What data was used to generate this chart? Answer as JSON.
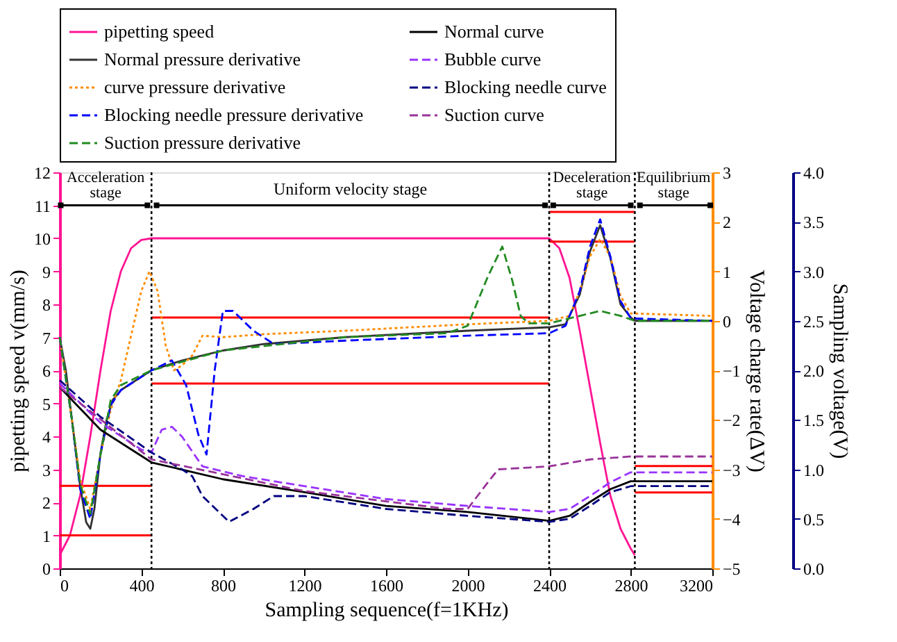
{
  "chart_data": {
    "type": "line",
    "xlabel": "Sampling sequence(f=1KHz)",
    "ylabel": "pipetting speed v(mm/s)",
    "y2label": "Voltage charge rate(ΔV)",
    "y3label": "Sampling voltage(V)",
    "xlim": [
      0,
      3200
    ],
    "xticks": [
      0,
      400,
      800,
      1200,
      1600,
      2000,
      2400,
      2800,
      3200
    ],
    "ylim": [
      0,
      12
    ],
    "yticks": [
      0,
      1,
      2,
      3,
      4,
      5,
      6,
      7,
      8,
      9,
      10,
      11,
      12
    ],
    "y2lim": [
      -5,
      3
    ],
    "y2ticks": [
      -5,
      -4,
      -3,
      -2,
      -1,
      0,
      1,
      2,
      3
    ],
    "y3lim": [
      0,
      4
    ],
    "y3ticks": [
      {
        "value": 0,
        "label": "0.0"
      },
      {
        "value": 0.5,
        "label": "0.5"
      },
      {
        "value": 1,
        "label": "1.0"
      },
      {
        "value": 1.5,
        "label": "1.5"
      },
      {
        "value": 2,
        "label": "2.0"
      },
      {
        "value": 2.5,
        "label": "2.5"
      },
      {
        "value": 3,
        "label": "3.0"
      },
      {
        "value": 3.5,
        "label": "3.5"
      },
      {
        "value": 4,
        "label": "4.0"
      }
    ],
    "grid": false,
    "legend": "top",
    "marker": "none",
    "annotations": [
      {
        "text": "Acceleration stage",
        "x": 225,
        "y": 11
      },
      {
        "text": "Uniform velocity stage",
        "x": 1425,
        "y": 11
      },
      {
        "text": "Deceleration stage",
        "x": 2610,
        "y": 11
      },
      {
        "text": "Equilibrium stage",
        "x": 3010,
        "y": 11
      }
    ],
    "ref_lines": [
      {
        "axis": "x",
        "value": 450,
        "color": "#000000",
        "line_style": "dotted"
      },
      {
        "axis": "x",
        "value": 2400,
        "color": "#000000",
        "line_style": "dotted"
      },
      {
        "axis": "x",
        "value": 2820,
        "color": "#000000",
        "line_style": "dotted"
      }
    ],
    "series": [
      {
        "name": "pipetting speed",
        "color": "#ff1493",
        "line_style": "solid",
        "axis": "y",
        "x": [
          0,
          50,
          100,
          150,
          200,
          250,
          300,
          350,
          400,
          450,
          2400,
          2450,
          2500,
          2550,
          2600,
          2650,
          2700,
          2750,
          2800,
          2820
        ],
        "values": [
          0.4,
          1,
          2.2,
          4,
          6,
          7.8,
          9,
          9.7,
          9.95,
          10,
          10,
          9.7,
          8.8,
          7.2,
          5.5,
          3.8,
          2.2,
          1.2,
          0.6,
          0.4
        ]
      },
      {
        "name": "Normal curve",
        "color": "#000000",
        "line_style": "solid",
        "axis": "y3",
        "x": [
          0,
          200,
          450,
          800,
          1200,
          1600,
          2000,
          2400,
          2500,
          2600,
          2700,
          2800,
          3200
        ],
        "values": [
          1.83,
          1.4,
          1.07,
          0.9,
          0.77,
          0.63,
          0.57,
          0.48,
          0.53,
          0.67,
          0.8,
          0.88,
          0.88
        ]
      },
      {
        "name": "Normal pressure derivative",
        "color": "#333333",
        "line_style": "solid",
        "axis": "y2",
        "x": [
          0,
          30,
          60,
          100,
          130,
          150,
          170,
          200,
          230,
          260,
          300,
          400,
          450,
          600,
          800,
          1000,
          1400,
          2000,
          2400,
          2480,
          2550,
          2600,
          2650,
          2700,
          2750,
          2800,
          2820,
          3200
        ],
        "values": [
          -0.33,
          -1.0,
          -2.0,
          -3.33,
          -4.07,
          -4.2,
          -3.8,
          -2.67,
          -2.0,
          -1.6,
          -1.4,
          -1.13,
          -1.0,
          -0.8,
          -0.6,
          -0.47,
          -0.33,
          -0.2,
          -0.13,
          -0.07,
          0.53,
          1.4,
          1.93,
          1.27,
          0.33,
          0.07,
          0.0,
          0.0
        ]
      },
      {
        "name": "Bubble curve",
        "color": "#9933ff",
        "line_style": "dashed",
        "axis": "y3",
        "x": [
          0,
          200,
          400,
          450,
          500,
          550,
          600,
          700,
          900,
          1200,
          1600,
          2000,
          2400,
          2500,
          2600,
          2700,
          2800,
          3200
        ],
        "values": [
          1.87,
          1.47,
          1.2,
          1.17,
          1.4,
          1.43,
          1.33,
          1.03,
          0.93,
          0.83,
          0.7,
          0.63,
          0.57,
          0.6,
          0.73,
          0.87,
          0.97,
          0.97
        ]
      },
      {
        "name": "curve pressure derivative",
        "color": "#ff8c00",
        "line_style": "dotted",
        "axis": "y2",
        "x": [
          0,
          60,
          100,
          150,
          200,
          250,
          300,
          350,
          400,
          440,
          480,
          520,
          560,
          600,
          650,
          700,
          800,
          1000,
          1400,
          2000,
          2400,
          2500,
          2550,
          2600,
          2650,
          2700,
          2750,
          2800,
          3200
        ],
        "values": [
          -0.33,
          -2.0,
          -3.2,
          -3.8,
          -2.7,
          -1.8,
          -1.2,
          -0.3,
          0.6,
          1.0,
          0.6,
          -0.5,
          -1.0,
          -0.9,
          -0.7,
          -0.3,
          -0.33,
          -0.27,
          -0.2,
          -0.07,
          0.0,
          0.1,
          0.6,
          1.3,
          1.65,
          1.3,
          0.5,
          0.15,
          0.1
        ]
      },
      {
        "name": "Blocking needle curve",
        "color": "#000080",
        "line_style": "dashed",
        "axis": "y3",
        "x": [
          0,
          200,
          450,
          600,
          650,
          700,
          830,
          950,
          1050,
          1200,
          1600,
          2000,
          2400,
          2500,
          2600,
          2700,
          2800,
          3200
        ],
        "values": [
          1.9,
          1.53,
          1.17,
          1.0,
          0.93,
          0.73,
          0.47,
          0.6,
          0.73,
          0.73,
          0.6,
          0.53,
          0.47,
          0.5,
          0.63,
          0.77,
          0.83,
          0.83
        ]
      },
      {
        "name": "Blocking needle pressure derivative",
        "color": "#0000ff",
        "line_style": "dashed",
        "axis": "y2",
        "x": [
          0,
          60,
          100,
          150,
          200,
          250,
          300,
          450,
          550,
          620,
          680,
          720,
          760,
          800,
          850,
          950,
          1050,
          1400,
          2000,
          2400,
          2480,
          2550,
          2600,
          2650,
          2700,
          2750,
          2800,
          3200
        ],
        "values": [
          -0.33,
          -2.0,
          -3.4,
          -4.0,
          -2.7,
          -1.7,
          -1.4,
          -1.0,
          -0.8,
          -1.3,
          -2.3,
          -2.7,
          -1.0,
          0.2,
          0.2,
          -0.2,
          -0.47,
          -0.4,
          -0.3,
          -0.25,
          -0.1,
          0.6,
          1.5,
          2.05,
          1.3,
          0.4,
          0.05,
          0.0
        ]
      },
      {
        "name": "Suction curve",
        "color": "#993399",
        "line_style": "dashed",
        "axis": "y3",
        "x": [
          0,
          450,
          1200,
          1900,
          2000,
          2100,
          2150,
          2400,
          2600,
          2800,
          3200
        ],
        "values": [
          1.83,
          1.1,
          0.78,
          0.6,
          0.6,
          0.87,
          1.0,
          1.03,
          1.1,
          1.13,
          1.13
        ]
      },
      {
        "name": "Suction pressure derivative",
        "color": "#228b22",
        "line_style": "dashed",
        "axis": "y2",
        "x": [
          0,
          60,
          100,
          150,
          200,
          250,
          300,
          450,
          800,
          1400,
          1900,
          2000,
          2100,
          2170,
          2220,
          2260,
          2300,
          2400,
          2500,
          2650,
          2750,
          2820,
          3200
        ],
        "values": [
          -0.33,
          -2.0,
          -3.3,
          -3.9,
          -2.7,
          -1.6,
          -1.3,
          -1.0,
          -0.6,
          -0.33,
          -0.25,
          -0.1,
          0.9,
          1.5,
          0.8,
          0.1,
          -0.05,
          -0.05,
          0.05,
          0.2,
          0.1,
          0.0,
          0.0
        ]
      },
      {
        "color": "#000000",
        "axis": "y",
        "marker": "square",
        "x": [
          5,
          430
        ],
        "values": [
          11,
          11
        ]
      },
      {
        "color": "#000000",
        "axis": "y",
        "marker": "square",
        "x": [
          475,
          2380
        ],
        "values": [
          11,
          11
        ]
      },
      {
        "color": "#000000",
        "axis": "y",
        "marker": "square",
        "x": [
          2420,
          2800
        ],
        "values": [
          11,
          11
        ]
      },
      {
        "color": "#000000",
        "axis": "y",
        "marker": "square",
        "x": [
          2845,
          3190
        ],
        "values": [
          11,
          11
        ]
      },
      {
        "color": "#ff0000",
        "axis": "y",
        "x": [
          0,
          450
        ],
        "values": [
          1.0,
          1.0
        ]
      },
      {
        "color": "#ff0000",
        "axis": "y",
        "x": [
          0,
          450
        ],
        "values": [
          2.5,
          2.5
        ]
      },
      {
        "color": "#ff0000",
        "axis": "y",
        "x": [
          450,
          2400
        ],
        "values": [
          5.6,
          5.6
        ]
      },
      {
        "color": "#ff0000",
        "axis": "y",
        "x": [
          450,
          2400
        ],
        "values": [
          7.6,
          7.6
        ]
      },
      {
        "color": "#ff0000",
        "axis": "y",
        "x": [
          2400,
          2820
        ],
        "values": [
          9.9,
          9.9
        ]
      },
      {
        "color": "#ff0000",
        "axis": "y",
        "x": [
          2400,
          2820
        ],
        "values": [
          10.8,
          10.8
        ]
      },
      {
        "color": "#ff0000",
        "axis": "y",
        "x": [
          2820,
          3200
        ],
        "values": [
          2.3,
          2.3
        ]
      },
      {
        "color": "#ff0000",
        "axis": "y",
        "x": [
          2820,
          3200
        ],
        "values": [
          3.1,
          3.1
        ]
      }
    ]
  }
}
